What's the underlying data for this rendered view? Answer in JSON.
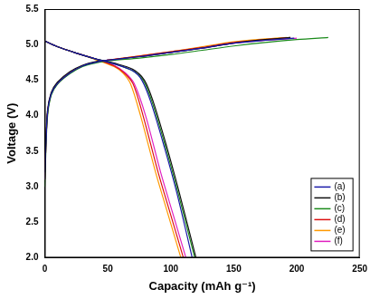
{
  "chart_data": {
    "type": "line",
    "x_label": "Capacity (mAh g⁻¹)",
    "y_label": "Voltage (V)",
    "xlim": [
      0,
      250
    ],
    "xticks": [
      0,
      50,
      100,
      150,
      200,
      250
    ],
    "ylim": [
      2.0,
      5.5
    ],
    "yticks": [
      {
        "value": 2.0,
        "label": "2.0"
      },
      {
        "value": 2.5,
        "label": "2.5"
      },
      {
        "value": 3.0,
        "label": "3.0"
      },
      {
        "value": 3.5,
        "label": "3.5"
      },
      {
        "value": 4.0,
        "label": "4.0"
      },
      {
        "value": 4.5,
        "label": "4.5"
      },
      {
        "value": 5.0,
        "label": "5.0"
      },
      {
        "value": 5.5,
        "label": "5.5"
      }
    ],
    "grid": false,
    "legend": "lower right",
    "series": [
      {
        "name": "(a)",
        "color": "#1a1aa8",
        "x": [
          0,
          2,
          5,
          10,
          20,
          30,
          40,
          50,
          75,
          100,
          125,
          150,
          175,
          198,
          null,
          0,
          10,
          25,
          40,
          55,
          70,
          77,
          84,
          95,
          105,
          117
        ],
        "values": [
          3.1,
          4.0,
          4.3,
          4.45,
          4.6,
          4.7,
          4.75,
          4.78,
          4.83,
          4.89,
          4.95,
          5.02,
          5.06,
          5.09,
          null,
          5.05,
          4.97,
          4.88,
          4.8,
          4.73,
          4.63,
          4.5,
          4.2,
          3.55,
          2.9,
          2.0
        ]
      },
      {
        "name": "(b)",
        "color": "#111111",
        "x": [
          0,
          2,
          5,
          10,
          20,
          30,
          40,
          50,
          75,
          100,
          125,
          150,
          175,
          195,
          null,
          0,
          10,
          25,
          40,
          55,
          70,
          79,
          86,
          97,
          107,
          120
        ],
        "values": [
          3.2,
          4.05,
          4.32,
          4.47,
          4.62,
          4.71,
          4.76,
          4.78,
          4.83,
          4.89,
          4.95,
          5.02,
          5.07,
          5.1,
          null,
          5.05,
          4.97,
          4.88,
          4.8,
          4.74,
          4.65,
          4.5,
          4.2,
          3.55,
          2.9,
          2.0
        ]
      },
      {
        "name": "(c)",
        "color": "#1a8a1a",
        "x": [
          0,
          2,
          5,
          10,
          20,
          30,
          40,
          50,
          75,
          100,
          125,
          150,
          175,
          200,
          225,
          null,
          0,
          10,
          25,
          40,
          55,
          70,
          78,
          85,
          96,
          106,
          119
        ],
        "values": [
          3.0,
          3.95,
          4.28,
          4.44,
          4.59,
          4.69,
          4.74,
          4.77,
          4.81,
          4.86,
          4.92,
          4.98,
          5.03,
          5.07,
          5.1,
          null,
          5.05,
          4.97,
          4.88,
          4.8,
          4.73,
          4.63,
          4.5,
          4.2,
          3.55,
          2.9,
          2.0
        ]
      },
      {
        "name": "(d)",
        "color": "#dd1111",
        "x": [
          0,
          2,
          5,
          10,
          20,
          30,
          40,
          50,
          75,
          100,
          125,
          150,
          175,
          195,
          null,
          0,
          10,
          25,
          40,
          55,
          63,
          70,
          78,
          90,
          100,
          110
        ],
        "values": [
          3.1,
          4.0,
          4.3,
          4.45,
          4.6,
          4.7,
          4.75,
          4.78,
          4.84,
          4.9,
          4.96,
          5.03,
          5.07,
          5.1,
          null,
          5.05,
          4.97,
          4.88,
          4.8,
          4.7,
          4.6,
          4.45,
          4.0,
          3.2,
          2.6,
          2.0
        ]
      },
      {
        "name": "(e)",
        "color": "#ff9900",
        "x": [
          0,
          2,
          5,
          10,
          20,
          30,
          40,
          50,
          75,
          100,
          125,
          150,
          175,
          192,
          null,
          0,
          10,
          25,
          40,
          55,
          62,
          68,
          76,
          88,
          98,
          108
        ],
        "values": [
          3.1,
          4.0,
          4.3,
          4.45,
          4.6,
          4.7,
          4.75,
          4.78,
          4.84,
          4.9,
          4.97,
          5.04,
          5.08,
          5.1,
          null,
          5.05,
          4.97,
          4.88,
          4.79,
          4.69,
          4.6,
          4.45,
          4.0,
          3.2,
          2.6,
          2.0
        ]
      },
      {
        "name": "(f)",
        "color": "#e020c0",
        "x": [
          0,
          2,
          5,
          10,
          20,
          30,
          40,
          50,
          75,
          100,
          125,
          150,
          175,
          200,
          null,
          0,
          10,
          25,
          40,
          55,
          64,
          71,
          80,
          92,
          102,
          112
        ],
        "values": [
          3.1,
          4.0,
          4.3,
          4.45,
          4.6,
          4.7,
          4.75,
          4.78,
          4.83,
          4.89,
          4.95,
          5.02,
          5.06,
          5.09,
          null,
          5.05,
          4.97,
          4.88,
          4.8,
          4.71,
          4.6,
          4.45,
          4.0,
          3.2,
          2.6,
          2.0
        ]
      }
    ]
  }
}
